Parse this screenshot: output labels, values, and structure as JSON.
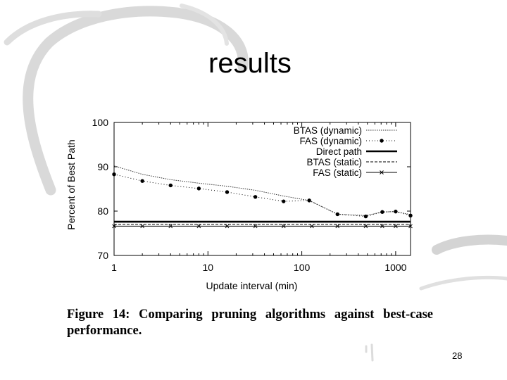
{
  "slide": {
    "title": "results",
    "page_number": "28",
    "caption_line1": "Figure 14:  Comparing pruning algorithms against best-case",
    "caption_line2": "performance."
  },
  "chart_data": {
    "type": "line",
    "xlabel": "Update interval (min)",
    "ylabel": "Percent of Best Path",
    "xscale": "log",
    "xlim": [
      1,
      1440
    ],
    "ylim": [
      70,
      100
    ],
    "xticks": [
      1,
      10,
      100,
      1000
    ],
    "xtick_labels": [
      "1",
      "10",
      "100",
      "1000"
    ],
    "yticks": [
      70,
      80,
      90,
      100
    ],
    "ytick_labels": [
      "70",
      "80",
      "90",
      "100"
    ],
    "grid": false,
    "legend": "top-right",
    "series": [
      {
        "name": "BTAS (dynamic)",
        "style": "dense-dotted",
        "marker": "none",
        "x": [
          1,
          2,
          4,
          8,
          16,
          32,
          64,
          120,
          240,
          480,
          720,
          1000,
          1440
        ],
        "y": [
          90.2,
          88.3,
          87.1,
          86.3,
          85.6,
          84.7,
          83.4,
          82.4,
          79.3,
          79.0,
          79.8,
          79.9,
          79.2
        ]
      },
      {
        "name": "FAS (dynamic)",
        "style": "dotted",
        "marker": "circle",
        "x": [
          1,
          2,
          4,
          8,
          16,
          32,
          64,
          120,
          240,
          480,
          720,
          1000,
          1440
        ],
        "y": [
          88.3,
          86.8,
          85.8,
          85.1,
          84.3,
          83.2,
          82.2,
          82.4,
          79.3,
          78.8,
          79.8,
          79.9,
          79.0
        ]
      },
      {
        "name": "Direct path",
        "style": "solid-thick",
        "marker": "none",
        "x": [
          1,
          1440
        ],
        "y": [
          77.6,
          77.6
        ]
      },
      {
        "name": "BTAS (static)",
        "style": "dashed",
        "marker": "none",
        "x": [
          1,
          1440
        ],
        "y": [
          77.0,
          77.0
        ]
      },
      {
        "name": "FAS (static)",
        "style": "solid-thin",
        "marker": "x",
        "x": [
          1,
          2,
          4,
          8,
          16,
          32,
          64,
          128,
          240,
          480,
          720,
          1000,
          1440
        ],
        "y": [
          76.6,
          76.6,
          76.6,
          76.6,
          76.6,
          76.6,
          76.6,
          76.6,
          76.6,
          76.6,
          76.6,
          76.6,
          76.6
        ]
      }
    ]
  }
}
